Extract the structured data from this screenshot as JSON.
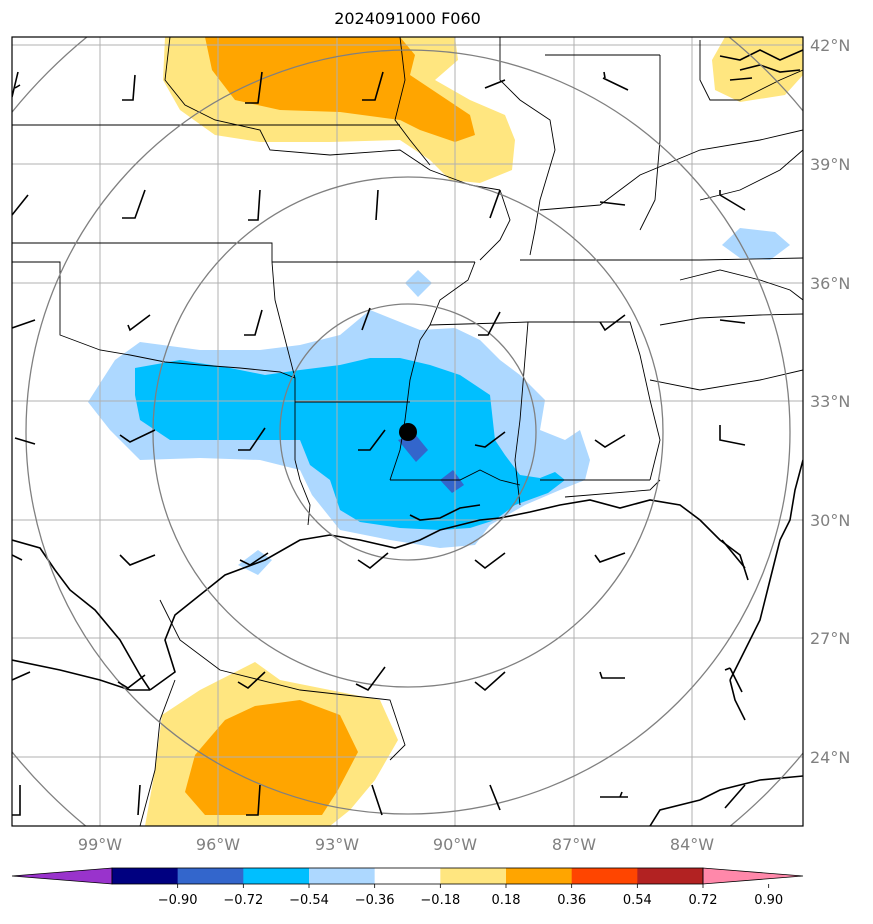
{
  "title": "2024091000 F060",
  "lat_labels": [
    "42°N",
    "39°N",
    "36°N",
    "33°N",
    "30°N",
    "27°N",
    "24°N"
  ],
  "lon_labels": [
    "99°W",
    "96°W",
    "93°W",
    "90°W",
    "87°W",
    "84°W"
  ],
  "colorbar": {
    "ticks": [
      "−0.90",
      "−0.72",
      "−0.54",
      "−0.36",
      "−0.18",
      "0.18",
      "0.36",
      "0.54",
      "0.72",
      "0.90"
    ],
    "colors": [
      "#9933cc",
      "#000080",
      "#3366cc",
      "#00bfff",
      "#add8ff",
      "#ffffff",
      "#ffe680",
      "#ffa500",
      "#ff4500",
      "#b22222",
      "#ff88aa"
    ]
  },
  "center_marker": {
    "lon": -91.2,
    "lat": 32.3
  }
}
